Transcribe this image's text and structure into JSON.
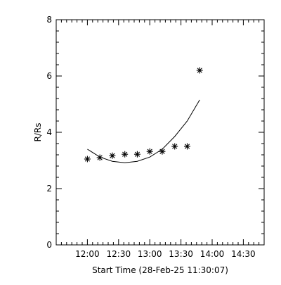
{
  "chart_data": {
    "type": "scatter",
    "xlabel": "Start Time (28-Feb-25 11:30:07)",
    "ylabel": "R/Rs",
    "xlim": [
      "11:30",
      "14:50"
    ],
    "ylim": [
      0,
      8
    ],
    "x_ticks": [
      "12:00",
      "12:30",
      "13:00",
      "13:30",
      "14:00",
      "14:30"
    ],
    "y_ticks": [
      0,
      2,
      4,
      6,
      8
    ],
    "grid": false,
    "series": [
      {
        "kind": "points",
        "marker": "asterisk",
        "x": [
          "12:00",
          "12:12",
          "12:24",
          "12:36",
          "12:48",
          "13:00",
          "13:12",
          "13:24",
          "13:36",
          "13:48"
        ],
        "y": [
          3.05,
          3.1,
          3.17,
          3.22,
          3.22,
          3.32,
          3.32,
          3.5,
          3.5,
          6.2
        ]
      },
      {
        "kind": "fit-line",
        "x": [
          "12:00",
          "12:12",
          "12:24",
          "12:36",
          "12:48",
          "13:00",
          "13:12",
          "13:24",
          "13:36",
          "13:48"
        ],
        "y": [
          3.4,
          3.12,
          2.97,
          2.92,
          2.97,
          3.12,
          3.4,
          3.85,
          4.4,
          5.15
        ]
      }
    ]
  }
}
